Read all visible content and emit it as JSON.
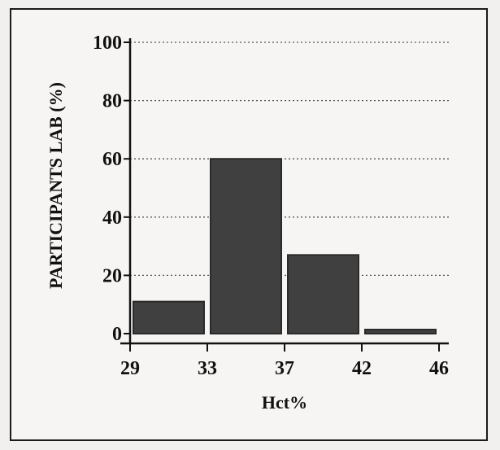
{
  "chart_data": {
    "type": "bar",
    "title": "",
    "xlabel": "Hct%",
    "ylabel": "PARTICIPANTS LAB (%)",
    "bins": [
      {
        "from": 29,
        "to": 33,
        "value": 11
      },
      {
        "from": 33,
        "to": 37,
        "value": 60
      },
      {
        "from": 37,
        "to": 42,
        "value": 27
      },
      {
        "from": 42,
        "to": 46,
        "value": 1
      }
    ],
    "x_ticks": [
      "29",
      "33",
      "37",
      "42",
      "46"
    ],
    "y_ticks": [
      "0",
      "20",
      "40",
      "60",
      "80",
      "100"
    ],
    "ylim": [
      0,
      100
    ],
    "grid": "dotted horizontal",
    "legend": "none",
    "colors": {
      "bar": "#404040",
      "bar_dark": "#2a2a2a",
      "axis": "#111111",
      "grid": "#555555"
    }
  }
}
